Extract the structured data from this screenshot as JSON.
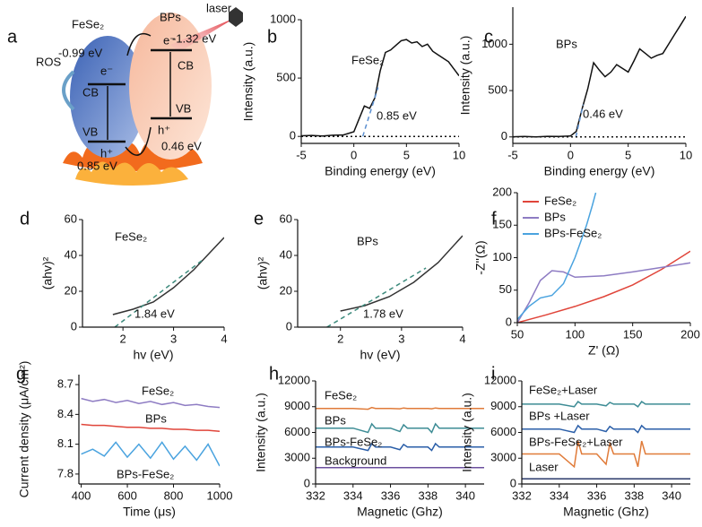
{
  "diagram": {
    "label": "a",
    "materials": [
      "FeSe₂",
      "BPs"
    ],
    "laser": "laser",
    "levels": [
      "-0.99 eV",
      "-1.32 eV",
      "0.85 eV",
      "0.46 eV"
    ],
    "bands": [
      "CB",
      "VB",
      "CB",
      "VB"
    ],
    "carriers": [
      "e⁻",
      "e⁻",
      "h⁺",
      "h⁺"
    ],
    "ros": "ROS"
  },
  "chart_data": [
    {
      "type": "line",
      "label": "b",
      "xlabel": "Binding energy (eV)",
      "ylabel": "Intensity (a.u.)",
      "xlim": [
        -5,
        10
      ],
      "ylim": [
        -60,
        1000
      ],
      "xticks": [
        -5,
        0,
        5,
        10
      ],
      "yticks": [
        0,
        500,
        1000
      ],
      "annotations": [
        "FeSe₂",
        "0.85 eV"
      ],
      "series": [
        {
          "color": "#111111",
          "style": "solid",
          "x": [
            -5,
            -4,
            -3,
            -2,
            -1,
            0,
            0.5,
            1,
            1.5,
            2,
            2.5,
            3,
            3.5,
            4,
            4.5,
            5,
            5.5,
            6,
            6.5,
            7,
            7.5,
            8,
            8.5,
            9,
            9.5,
            10
          ],
          "values": [
            5,
            8,
            4,
            10,
            12,
            40,
            150,
            260,
            240,
            330,
            560,
            720,
            740,
            780,
            820,
            830,
            800,
            810,
            770,
            790,
            730,
            700,
            670,
            640,
            580,
            520
          ]
        },
        {
          "color": "#5b8fd0",
          "style": "dashed",
          "x": [
            0.85,
            2.3
          ],
          "values": [
            0,
            420
          ]
        },
        {
          "color": "#111111",
          "style": "dotted",
          "x": [
            -5,
            10
          ],
          "values": [
            0,
            0
          ]
        }
      ]
    },
    {
      "type": "line",
      "label": "c",
      "xlabel": "Binding energy (eV)",
      "ylabel": "Intensity (a.u.)",
      "xlim": [
        -5,
        10
      ],
      "ylim": [
        -70,
        1400
      ],
      "xticks": [
        -5,
        0,
        5,
        10
      ],
      "yticks": [
        0,
        500,
        1000
      ],
      "annotations": [
        "BPs",
        "0.46 eV"
      ],
      "series": [
        {
          "color": "#111111",
          "style": "solid",
          "x": [
            -5,
            -4,
            -3,
            -2,
            -1,
            0,
            0.5,
            1,
            1.5,
            2,
            2.5,
            3,
            3.5,
            4,
            4.5,
            5,
            5.5,
            6,
            6.5,
            7,
            7.5,
            8,
            8.5,
            9,
            9.5,
            10
          ],
          "values": [
            2,
            5,
            0,
            6,
            4,
            10,
            60,
            300,
            520,
            800,
            720,
            650,
            700,
            780,
            740,
            700,
            820,
            950,
            900,
            850,
            880,
            900,
            1000,
            1100,
            1200,
            1300
          ]
        },
        {
          "color": "#5b8fd0",
          "style": "dashed",
          "x": [
            0.46,
            1.1
          ],
          "values": [
            0,
            350
          ]
        },
        {
          "color": "#111111",
          "style": "dotted",
          "x": [
            -5,
            10
          ],
          "values": [
            0,
            0
          ]
        }
      ]
    },
    {
      "type": "line",
      "label": "d",
      "xlabel": "hv (eV)",
      "ylabel": "(ahv)²",
      "xlim": [
        1.2,
        4
      ],
      "ylim": [
        0,
        60
      ],
      "xticks": [
        2,
        3,
        4
      ],
      "yticks": [
        0,
        20,
        40,
        60
      ],
      "annotations": [
        "FeSe₂",
        "1.84 eV"
      ],
      "series": [
        {
          "color": "#333333",
          "style": "solid",
          "x": [
            1.8,
            2.2,
            2.6,
            3,
            3.4,
            3.8,
            4
          ],
          "values": [
            7,
            10,
            14,
            22,
            32,
            44,
            50
          ]
        },
        {
          "color": "#3c8a7c",
          "style": "dashed",
          "x": [
            1.84,
            3.6
          ],
          "values": [
            0,
            38
          ]
        }
      ]
    },
    {
      "type": "line",
      "label": "e",
      "xlabel": "hv (eV)",
      "ylabel": "(ahv)²",
      "xlim": [
        1.3,
        4
      ],
      "ylim": [
        0,
        60
      ],
      "xticks": [
        2,
        3,
        4
      ],
      "yticks": [
        0,
        20,
        40,
        60
      ],
      "annotations": [
        "BPs",
        "1.78 eV"
      ],
      "series": [
        {
          "color": "#333333",
          "style": "solid",
          "x": [
            2,
            2.4,
            2.8,
            3.2,
            3.6,
            4
          ],
          "values": [
            9,
            12,
            17,
            25,
            36,
            51
          ]
        },
        {
          "color": "#3c8a7c",
          "style": "dashed",
          "x": [
            1.78,
            3.4
          ],
          "values": [
            0,
            33
          ]
        }
      ]
    },
    {
      "type": "line",
      "label": "f",
      "xlabel": "Z' (Ω)",
      "ylabel": "-Z''(Ω)",
      "xlim": [
        50,
        200
      ],
      "ylim": [
        0,
        200
      ],
      "xticks": [
        50,
        100,
        150,
        200
      ],
      "yticks": [
        0,
        50,
        100,
        150,
        200
      ],
      "legend": "upper left",
      "series": [
        {
          "name": "FeSe₂",
          "color": "#e0453a",
          "style": "solid",
          "x": [
            50,
            75,
            100,
            125,
            150,
            175,
            200
          ],
          "values": [
            0,
            12,
            25,
            40,
            58,
            82,
            110
          ]
        },
        {
          "name": "BPs",
          "color": "#8e7cc3",
          "style": "solid",
          "x": [
            50,
            60,
            70,
            80,
            90,
            100,
            125,
            150,
            175,
            200
          ],
          "values": [
            0,
            30,
            65,
            80,
            78,
            70,
            72,
            78,
            85,
            92
          ]
        },
        {
          "name": "BPs-FeSe₂",
          "color": "#4aa3df",
          "style": "solid",
          "x": [
            50,
            60,
            70,
            80,
            90,
            100,
            105,
            110,
            115,
            118
          ],
          "values": [
            5,
            25,
            38,
            42,
            60,
            100,
            125,
            150,
            180,
            200
          ]
        }
      ]
    },
    {
      "type": "line",
      "label": "g",
      "xlabel": "Time (μs)",
      "ylabel": "Current density (μA/cm²)",
      "xlim": [
        390,
        1000
      ],
      "ylim": [
        7.7,
        8.8
      ],
      "xticks": [
        400,
        600,
        800,
        1000
      ],
      "yticks": [
        7.8,
        8.1,
        8.4,
        8.7
      ],
      "annotations": [
        "FeSe₂",
        "BPs",
        "BPs-FeSe₂"
      ],
      "series": [
        {
          "color": "#8e7cc3",
          "style": "solid",
          "x": [
            400,
            450,
            500,
            550,
            600,
            650,
            700,
            750,
            800,
            850,
            900,
            950,
            1000
          ],
          "values": [
            8.56,
            8.53,
            8.55,
            8.52,
            8.54,
            8.51,
            8.53,
            8.5,
            8.52,
            8.49,
            8.5,
            8.48,
            8.47
          ]
        },
        {
          "color": "#e0453a",
          "style": "solid",
          "x": [
            400,
            450,
            500,
            550,
            600,
            650,
            700,
            750,
            800,
            850,
            900,
            950,
            1000
          ],
          "values": [
            8.3,
            8.29,
            8.29,
            8.28,
            8.27,
            8.27,
            8.26,
            8.26,
            8.25,
            8.25,
            8.24,
            8.24,
            8.23
          ]
        },
        {
          "color": "#4aa3df",
          "style": "solid",
          "x": [
            400,
            450,
            500,
            550,
            600,
            650,
            700,
            750,
            800,
            850,
            900,
            950,
            1000
          ],
          "values": [
            8.0,
            8.05,
            7.98,
            8.12,
            7.97,
            8.1,
            7.96,
            8.12,
            7.95,
            8.08,
            7.94,
            8.1,
            7.88
          ]
        }
      ]
    },
    {
      "type": "line",
      "label": "h",
      "xlabel": "Magnetic (Ghz)",
      "ylabel": "Intensity (a.u.)",
      "xlim": [
        332,
        341
      ],
      "ylim": [
        0,
        12000
      ],
      "xticks": [
        332,
        334,
        336,
        338,
        340
      ],
      "yticks": [
        0,
        3000,
        6000,
        9000,
        12000
      ],
      "annotations": [
        "FeSe₂",
        "BPs",
        "BPs-FeSe₂",
        "Background"
      ],
      "series": [
        {
          "color": "#e07b39",
          "style": "solid",
          "x": [
            332,
            334,
            334.8,
            335,
            335.2,
            336,
            336.5,
            336.7,
            336.9,
            338,
            338.2,
            338.4,
            338.6,
            341
          ],
          "values": [
            8800,
            8800,
            8700,
            8900,
            8800,
            8800,
            8750,
            8850,
            8800,
            8800,
            8750,
            8850,
            8800,
            8800
          ]
        },
        {
          "color": "#3d8c95",
          "style": "solid",
          "x": [
            332,
            334,
            334.8,
            335,
            335.2,
            336,
            336.5,
            336.7,
            336.9,
            338,
            338.2,
            338.4,
            338.6,
            341
          ],
          "values": [
            6500,
            6500,
            6000,
            7000,
            6500,
            6500,
            6100,
            6900,
            6500,
            6500,
            6000,
            7000,
            6500,
            6500
          ]
        },
        {
          "color": "#2a5ea8",
          "style": "solid",
          "x": [
            332,
            334,
            334.8,
            335,
            335.2,
            336,
            336.5,
            336.7,
            336.9,
            338,
            338.2,
            338.4,
            338.6,
            341
          ],
          "values": [
            4300,
            4300,
            3900,
            4700,
            4300,
            4300,
            4000,
            4600,
            4300,
            4300,
            3900,
            4700,
            4300,
            4300
          ]
        },
        {
          "color": "#6b4f9e",
          "style": "solid",
          "x": [
            332,
            341
          ],
          "values": [
            1900,
            1900
          ]
        }
      ]
    },
    {
      "type": "line",
      "label": "i",
      "xlabel": "Magnetic (Ghz)",
      "ylabel": "Intensity (a.u.)",
      "xlim": [
        332,
        341
      ],
      "ylim": [
        0,
        12000
      ],
      "xticks": [
        332,
        334,
        336,
        338,
        340
      ],
      "yticks": [
        0,
        3000,
        6000,
        9000,
        12000
      ],
      "annotations": [
        "FeSe₂+Laser",
        "BPs +Laser",
        "BPs-FeSe₂+Laser",
        "Laser"
      ],
      "series": [
        {
          "color": "#3d8c95",
          "style": "solid",
          "x": [
            332,
            334,
            334.8,
            335,
            335.2,
            336,
            336.5,
            336.7,
            336.9,
            338,
            338.2,
            338.4,
            338.6,
            341
          ],
          "values": [
            9300,
            9300,
            9000,
            9600,
            9300,
            9300,
            9100,
            9500,
            9300,
            9300,
            9000,
            9600,
            9300,
            9300
          ]
        },
        {
          "color": "#2a5ea8",
          "style": "solid",
          "x": [
            332,
            334,
            334.8,
            335,
            335.2,
            336,
            336.5,
            336.7,
            336.9,
            338,
            338.2,
            338.4,
            338.6,
            341
          ],
          "values": [
            6400,
            6400,
            6000,
            6800,
            6400,
            6400,
            6100,
            6700,
            6400,
            6400,
            6000,
            6800,
            6400,
            6400
          ]
        },
        {
          "color": "#e07b39",
          "style": "solid",
          "x": [
            332,
            334,
            334.8,
            335,
            335.2,
            336,
            336.5,
            336.7,
            336.9,
            338,
            338.2,
            338.4,
            338.6,
            341
          ],
          "values": [
            3500,
            3500,
            2000,
            5000,
            3500,
            3500,
            2300,
            4700,
            3500,
            3500,
            2000,
            5000,
            3500,
            3500
          ]
        },
        {
          "color": "#2b3a6b",
          "style": "solid",
          "x": [
            332,
            341
          ],
          "values": [
            600,
            600
          ]
        }
      ]
    }
  ]
}
